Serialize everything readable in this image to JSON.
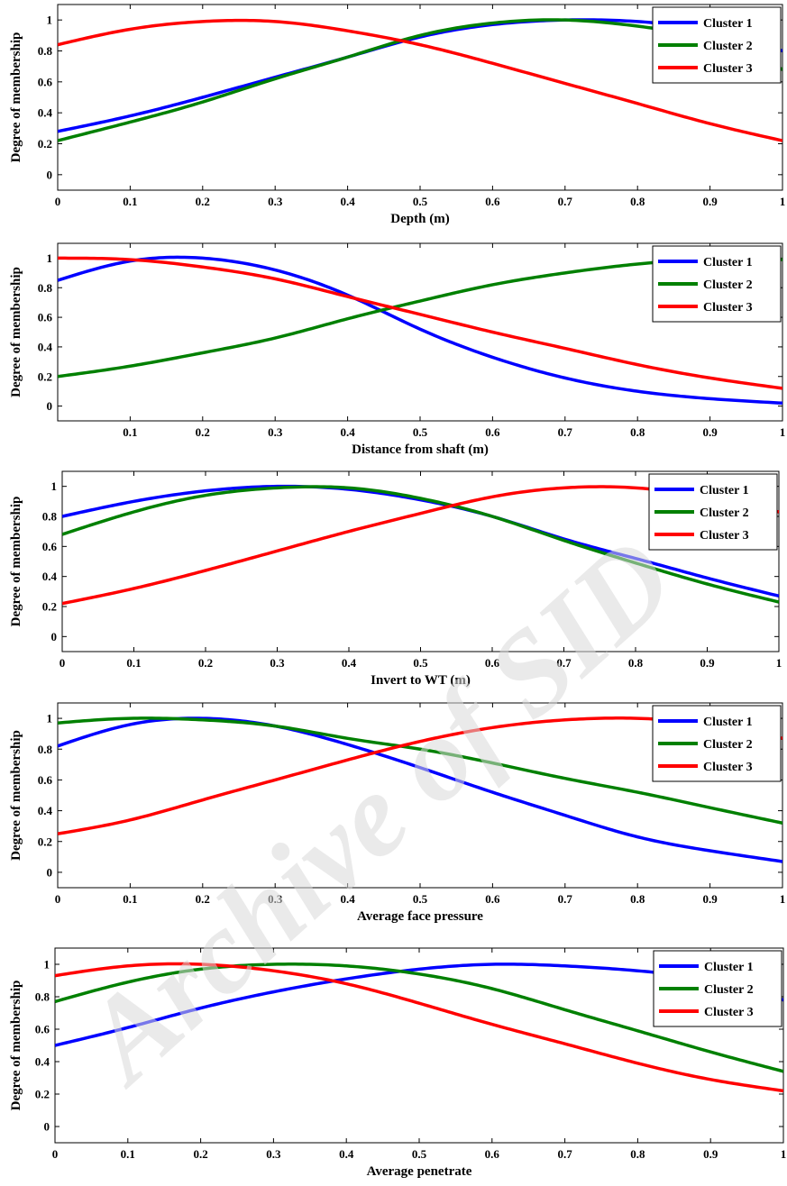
{
  "watermark": "Archive of SID",
  "chart_data": [
    {
      "type": "line",
      "xlabel": "Depth (m)",
      "ylabel": "Degree of membership",
      "xlim": [
        0,
        1
      ],
      "ylim": [
        -0.1,
        1.1
      ],
      "xticks": [
        0,
        0.1,
        0.2,
        0.3,
        0.4,
        0.5,
        0.6,
        0.7,
        0.8,
        0.9,
        1
      ],
      "yticks": [
        0,
        0.2,
        0.4,
        0.6,
        0.8,
        1
      ],
      "legend_position": "top-right",
      "x": [
        0,
        0.1,
        0.2,
        0.3,
        0.4,
        0.5,
        0.6,
        0.7,
        0.8,
        0.9,
        1
      ],
      "series": [
        {
          "name": "Cluster 1",
          "color": "#0000ff",
          "values": [
            0.28,
            0.38,
            0.5,
            0.63,
            0.76,
            0.89,
            0.97,
            1.0,
            0.99,
            0.93,
            0.8
          ]
        },
        {
          "name": "Cluster 2",
          "color": "#008000",
          "values": [
            0.22,
            0.34,
            0.47,
            0.62,
            0.76,
            0.9,
            0.98,
            1.0,
            0.96,
            0.87,
            0.68
          ]
        },
        {
          "name": "Cluster 3",
          "color": "#ff0000",
          "values": [
            0.84,
            0.94,
            0.99,
            0.99,
            0.93,
            0.84,
            0.72,
            0.59,
            0.46,
            0.33,
            0.22
          ]
        }
      ]
    },
    {
      "type": "line",
      "xlabel": "Distance from shaft (m)",
      "ylabel": "Degree of membership",
      "xlim": [
        0,
        1
      ],
      "ylim": [
        -0.1,
        1.1
      ],
      "xticks": [
        0.1,
        0.2,
        0.3,
        0.4,
        0.5,
        0.6,
        0.7,
        0.8,
        0.9,
        1
      ],
      "yticks": [
        0,
        0.2,
        0.4,
        0.6,
        0.8,
        1
      ],
      "legend_position": "top-right",
      "x": [
        0,
        0.1,
        0.2,
        0.3,
        0.4,
        0.5,
        0.6,
        0.7,
        0.8,
        0.9,
        1
      ],
      "series": [
        {
          "name": "Cluster 1",
          "color": "#0000ff",
          "values": [
            0.85,
            0.98,
            1.0,
            0.92,
            0.75,
            0.52,
            0.33,
            0.19,
            0.1,
            0.05,
            0.02
          ]
        },
        {
          "name": "Cluster 2",
          "color": "#008000",
          "values": [
            0.2,
            0.27,
            0.36,
            0.46,
            0.59,
            0.71,
            0.82,
            0.9,
            0.96,
            0.99,
            0.99
          ]
        },
        {
          "name": "Cluster 3",
          "color": "#ff0000",
          "values": [
            1.0,
            0.99,
            0.94,
            0.86,
            0.74,
            0.62,
            0.5,
            0.39,
            0.28,
            0.19,
            0.12
          ]
        }
      ]
    },
    {
      "type": "line",
      "xlabel": "Invert to WT (m)",
      "ylabel": "Degree of membership",
      "xlim": [
        0,
        1
      ],
      "ylim": [
        -0.1,
        1.1
      ],
      "xticks": [
        0,
        0.1,
        0.2,
        0.3,
        0.4,
        0.5,
        0.6,
        0.7,
        0.8,
        0.9,
        1
      ],
      "yticks": [
        0,
        0.2,
        0.4,
        0.6,
        0.8,
        1
      ],
      "legend_position": "top-right",
      "x": [
        0,
        0.1,
        0.2,
        0.3,
        0.4,
        0.5,
        0.6,
        0.7,
        0.8,
        0.9,
        1
      ],
      "series": [
        {
          "name": "Cluster 1",
          "color": "#0000ff",
          "values": [
            0.8,
            0.9,
            0.97,
            1.0,
            0.98,
            0.91,
            0.8,
            0.65,
            0.52,
            0.39,
            0.27
          ]
        },
        {
          "name": "Cluster 2",
          "color": "#008000",
          "values": [
            0.68,
            0.83,
            0.94,
            0.99,
            0.99,
            0.92,
            0.8,
            0.64,
            0.49,
            0.35,
            0.23
          ]
        },
        {
          "name": "Cluster 3",
          "color": "#ff0000",
          "values": [
            0.22,
            0.32,
            0.44,
            0.57,
            0.7,
            0.82,
            0.93,
            0.99,
            0.99,
            0.93,
            0.83
          ]
        }
      ]
    },
    {
      "type": "line",
      "xlabel": "Average face pressure",
      "ylabel": "Degree of membership",
      "xlim": [
        0,
        1
      ],
      "ylim": [
        -0.1,
        1.1
      ],
      "xticks": [
        0,
        0.1,
        0.2,
        0.3,
        0.4,
        0.5,
        0.6,
        0.7,
        0.8,
        0.9,
        1
      ],
      "yticks": [
        0,
        0.2,
        0.4,
        0.6,
        0.8,
        1
      ],
      "legend_position": "top-right",
      "x": [
        0,
        0.1,
        0.2,
        0.3,
        0.4,
        0.5,
        0.6,
        0.7,
        0.8,
        0.9,
        1
      ],
      "series": [
        {
          "name": "Cluster 1",
          "color": "#0000ff",
          "values": [
            0.82,
            0.96,
            1.0,
            0.95,
            0.83,
            0.68,
            0.52,
            0.37,
            0.23,
            0.14,
            0.07
          ]
        },
        {
          "name": "Cluster 2",
          "color": "#008000",
          "values": [
            0.97,
            1.0,
            0.99,
            0.95,
            0.87,
            0.8,
            0.71,
            0.61,
            0.52,
            0.42,
            0.32
          ]
        },
        {
          "name": "Cluster 3",
          "color": "#ff0000",
          "values": [
            0.25,
            0.34,
            0.47,
            0.6,
            0.73,
            0.85,
            0.94,
            0.99,
            1.0,
            0.96,
            0.87
          ]
        }
      ]
    },
    {
      "type": "line",
      "xlabel": "Average penetrate",
      "ylabel": "Degree of membership",
      "xlim": [
        0,
        1
      ],
      "ylim": [
        -0.1,
        1.1
      ],
      "xticks": [
        0,
        0.1,
        0.2,
        0.3,
        0.4,
        0.5,
        0.6,
        0.7,
        0.8,
        0.9,
        1
      ],
      "yticks": [
        0,
        0.2,
        0.4,
        0.6,
        0.8,
        1
      ],
      "legend_position": "top-right",
      "x": [
        0,
        0.1,
        0.2,
        0.3,
        0.4,
        0.5,
        0.6,
        0.7,
        0.8,
        0.9,
        1
      ],
      "series": [
        {
          "name": "Cluster 1",
          "color": "#0000ff",
          "values": [
            0.5,
            0.61,
            0.73,
            0.83,
            0.91,
            0.97,
            1.0,
            0.99,
            0.96,
            0.9,
            0.78
          ]
        },
        {
          "name": "Cluster 2",
          "color": "#008000",
          "values": [
            0.77,
            0.89,
            0.97,
            1.0,
            0.99,
            0.94,
            0.85,
            0.72,
            0.59,
            0.46,
            0.34
          ]
        },
        {
          "name": "Cluster 3",
          "color": "#ff0000",
          "values": [
            0.93,
            0.99,
            1.0,
            0.96,
            0.88,
            0.76,
            0.63,
            0.51,
            0.39,
            0.29,
            0.22
          ]
        }
      ]
    }
  ]
}
